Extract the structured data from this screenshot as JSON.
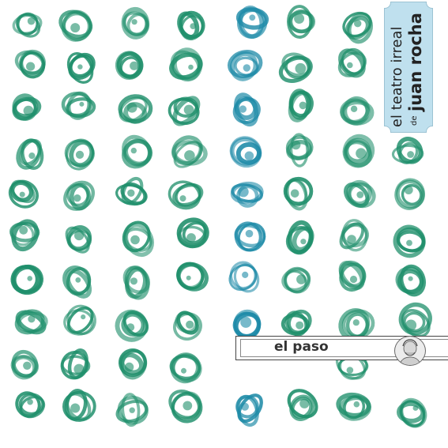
{
  "cover": {
    "title_line1": "el teatro irreal",
    "title_de": "de",
    "title_line2": "juan rocha",
    "album_title": "el paso"
  },
  "colors": {
    "background": "#ffffff",
    "green_ink": "#1f8f6b",
    "blue_ink": "#1d8aa7",
    "label_blue": "#bfe0ee"
  },
  "icons": [
    "scribble-circle-icon",
    "portrait-icon"
  ]
}
